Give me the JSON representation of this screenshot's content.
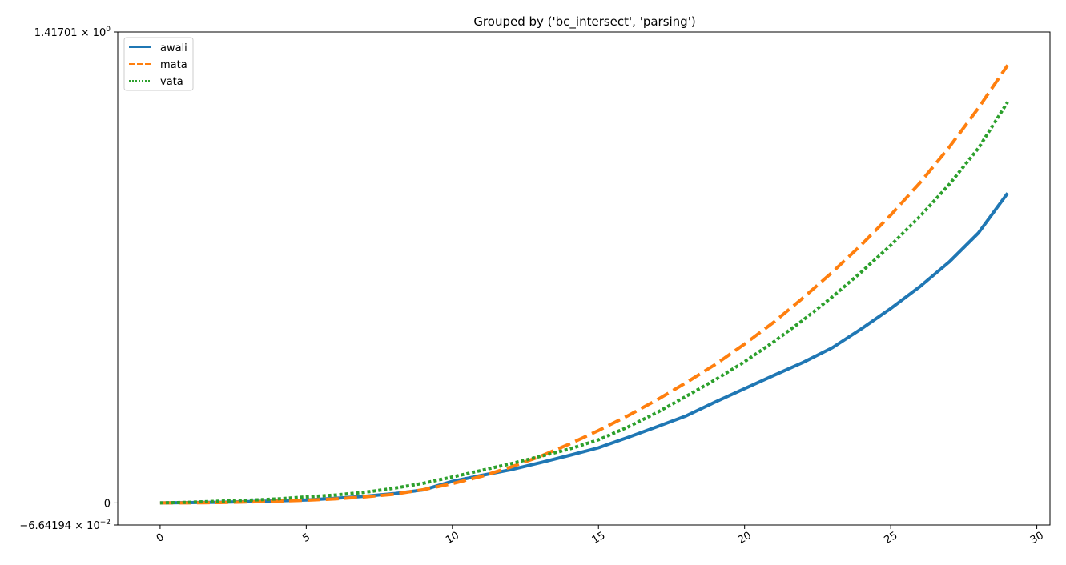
{
  "chart_data": {
    "type": "line",
    "title": "Grouped by ('bc_intersect', 'parsing')",
    "xlabel": "",
    "ylabel": "",
    "xlim": [
      -1.45,
      30.45
    ],
    "ylim": [
      -0.0664194,
      1.41701
    ],
    "xticks": [
      0,
      5,
      10,
      15,
      20,
      25,
      30
    ],
    "yticks": [
      {
        "value": 1.41701,
        "mantissa": "1.41701",
        "exponent": "0"
      },
      {
        "value": 0,
        "plain": "0"
      },
      {
        "value": -0.0664194,
        "mantissa": "−6.64194",
        "exponent": "−2"
      }
    ],
    "legend_position": "top-left",
    "grid": false,
    "series": [
      {
        "name": "awali",
        "color": "#1f77b4",
        "style": "solid",
        "x": [
          0,
          1,
          2,
          3,
          4,
          5,
          6,
          7,
          8,
          9,
          10,
          11,
          12,
          13,
          14,
          15,
          16,
          17,
          18,
          19,
          20,
          21,
          22,
          23,
          24,
          25,
          26,
          27,
          28,
          29
        ],
        "y": [
          0.0,
          0.001,
          0.002,
          0.004,
          0.006,
          0.009,
          0.014,
          0.02,
          0.028,
          0.039,
          0.065,
          0.083,
          0.1,
          0.121,
          0.143,
          0.166,
          0.197,
          0.229,
          0.262,
          0.304,
          0.344,
          0.384,
          0.423,
          0.467,
          0.524,
          0.585,
          0.651,
          0.725,
          0.812,
          0.932
        ]
      },
      {
        "name": "mata",
        "color": "#ff7f0e",
        "style": "dashed",
        "x": [
          0,
          1,
          2,
          3,
          4,
          5,
          6,
          7,
          8,
          9,
          10,
          11,
          12,
          13,
          14,
          15,
          16,
          17,
          18,
          19,
          20,
          21,
          22,
          23,
          24,
          25,
          26,
          27,
          28,
          29
        ],
        "y": [
          0.0,
          0.0,
          0.001,
          0.003,
          0.005,
          0.008,
          0.012,
          0.018,
          0.026,
          0.04,
          0.058,
          0.08,
          0.108,
          0.14,
          0.177,
          0.218,
          0.262,
          0.31,
          0.362,
          0.417,
          0.478,
          0.544,
          0.617,
          0.694,
          0.777,
          0.866,
          0.963,
          1.07,
          1.188,
          1.317
        ]
      },
      {
        "name": "vata",
        "color": "#2ca02c",
        "style": "dotted",
        "x": [
          0,
          1,
          2,
          3,
          4,
          5,
          6,
          7,
          8,
          9,
          10,
          11,
          12,
          13,
          14,
          15,
          16,
          17,
          18,
          19,
          20,
          21,
          22,
          23,
          24,
          25,
          26,
          27,
          28,
          29
        ],
        "y": [
          0.0,
          0.002,
          0.005,
          0.008,
          0.012,
          0.018,
          0.024,
          0.032,
          0.044,
          0.059,
          0.078,
          0.098,
          0.118,
          0.14,
          0.162,
          0.19,
          0.228,
          0.272,
          0.321,
          0.371,
          0.425,
          0.485,
          0.55,
          0.62,
          0.695,
          0.775,
          0.862,
          0.958,
          1.067,
          1.206
        ]
      }
    ]
  }
}
